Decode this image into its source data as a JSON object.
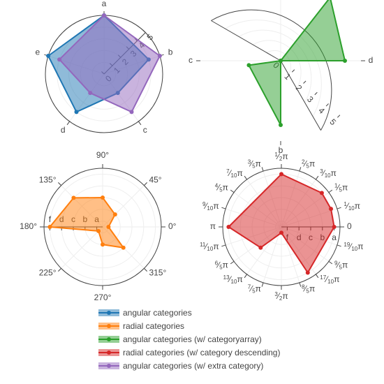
{
  "chart_data": [
    {
      "type": "polar",
      "subplot": "top-left",
      "angular_axis": {
        "type": "category",
        "categories": [
          "a",
          "b",
          "c",
          "d",
          "e"
        ],
        "rotation": 90,
        "direction": "clockwise"
      },
      "radial_axis": {
        "range": [
          0,
          5
        ],
        "tick_labels": [
          "0",
          "1",
          "2",
          "3",
          "4",
          "5"
        ],
        "angle": 45
      },
      "series": [
        {
          "name": "angular categories",
          "color": "#1f77b4",
          "theta": [
            "a",
            "b",
            "c",
            "d",
            "e",
            "a"
          ],
          "r": [
            5,
            4,
            2,
            4,
            5,
            5
          ]
        },
        {
          "name": "angular categories (w/ extra category)",
          "color": "#9467bd",
          "theta": [
            "a",
            "b",
            "c",
            "d",
            "e",
            "a"
          ],
          "r": [
            5,
            5,
            4,
            2,
            4,
            5
          ]
        }
      ]
    },
    {
      "type": "polar",
      "subplot": "top-right",
      "angular_axis": {
        "type": "category",
        "categories": [
          "d",
          "a",
          "c",
          "b"
        ],
        "rotation": 0,
        "direction": "counterclockwise",
        "arc": [
          -60,
          150
        ]
      },
      "radial_axis": {
        "range": [
          0,
          5
        ],
        "tick_labels": [
          "0",
          "1",
          "2",
          "3",
          "4",
          "5"
        ],
        "angle": -45
      },
      "series": [
        {
          "name": "angular categories (w/ categoryarray)",
          "color": "#2ca02c",
          "theta": [
            "a",
            "b",
            "c",
            "d",
            "b",
            "a"
          ],
          "r": [
            5,
            4,
            2,
            4,
            0,
            0
          ]
        }
      ]
    },
    {
      "type": "polar",
      "subplot": "bottom-left",
      "angular_axis": {
        "type": "linear",
        "unit": "degrees",
        "tick_labels": [
          "0°",
          "45°",
          "90°",
          "135°",
          "180°",
          "225°",
          "270°",
          "315°"
        ]
      },
      "radial_axis": {
        "type": "category",
        "categories": [
          "a",
          "b",
          "c",
          "d",
          "f"
        ],
        "angle": 180
      },
      "series": [
        {
          "name": "radial categories",
          "color": "#ff7f0e",
          "theta": [
            0,
            45,
            90,
            135,
            180,
            225,
            270,
            315,
            360
          ],
          "r": [
            "a",
            "b",
            "c",
            "d",
            "f",
            "a",
            "b",
            "c",
            "d"
          ]
        }
      ]
    },
    {
      "type": "polar",
      "subplot": "bottom-right",
      "angular_axis": {
        "type": "linear",
        "unit": "radians",
        "tick_labels": [
          "0",
          "1/10π",
          "1/5π",
          "3/10π",
          "2/5π",
          "1/2π",
          "3/5π",
          "7/10π",
          "4/5π",
          "9/10π",
          "π",
          "11/10π",
          "6/5π",
          "13/10π",
          "7/5π",
          "3/2π",
          "8/5π",
          "17/10π",
          "9/5π",
          "19/10π"
        ]
      },
      "radial_axis": {
        "type": "category",
        "categories": [
          "f",
          "d",
          "c",
          "b",
          "a"
        ],
        "angle": 0
      },
      "series": [
        {
          "name": "radial categories (w/ category descending)",
          "color": "#d62728",
          "theta": [
            0,
            20,
            40,
            90,
            180,
            225,
            270,
            300,
            360
          ],
          "r": [
            "a",
            "a",
            "a",
            "a",
            "a",
            "c",
            "f",
            "a",
            "a"
          ]
        }
      ]
    }
  ],
  "legend": {
    "placement": "bottom",
    "items": [
      {
        "label": "angular categories",
        "color": "#1f77b4"
      },
      {
        "label": "radial categories",
        "color": "#ff7f0e"
      },
      {
        "label": "angular categories (w/ categoryarray)",
        "color": "#2ca02c"
      },
      {
        "label": "radial categories (w/ category descending)",
        "color": "#d62728"
      },
      {
        "label": "angular categories (w/ extra category)",
        "color": "#9467bd"
      }
    ]
  }
}
